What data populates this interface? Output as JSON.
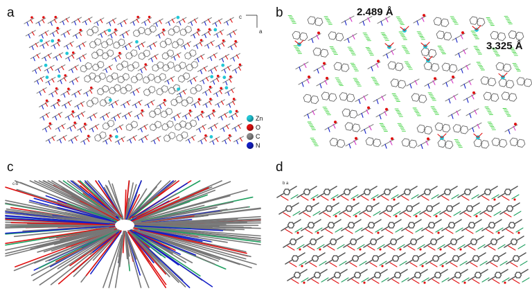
{
  "panels": {
    "a": {
      "label": "a",
      "axis_c": "c",
      "axis_a": "a"
    },
    "b": {
      "label": "b",
      "distance_1": "2.489 Å",
      "distance_2": "3.325 Å"
    },
    "c": {
      "label": "c",
      "axis_text": "c-b"
    },
    "d": {
      "label": "d",
      "axis_text": "b a"
    }
  },
  "legend": [
    {
      "label": "Zn",
      "color": "#22c7d6"
    },
    {
      "label": "O",
      "color": "#e01010"
    },
    {
      "label": "C",
      "color": "#8a8a8a"
    },
    {
      "label": "N",
      "color": "#1420c8"
    }
  ],
  "colors": {
    "zn": "#22c7d6",
    "o": "#e01010",
    "c": "#808080",
    "n": "#1420c8",
    "hbond": "#22cc22",
    "contact": "#d020c0"
  }
}
